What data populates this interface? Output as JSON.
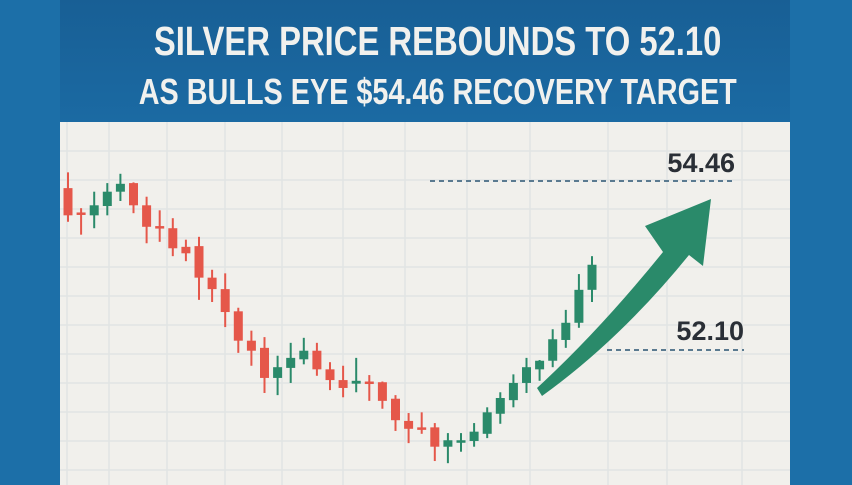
{
  "header": {
    "title_line1": "SILVER PRICE REBOUNDS TO 52.10",
    "title_line2": "AS BULLS EYE $54.46 RECOVERY TARGET"
  },
  "colors": {
    "background": "#1c6fa8",
    "panel": "#f1f0ec",
    "up": "#2a8a6a",
    "down": "#e5574a",
    "arrow": "#2a8a6a",
    "level_line": "#5a7a90"
  },
  "chart_data": {
    "type": "candlestick",
    "title": "SILVER PRICE REBOUNDS TO 52.10 AS BULLS EYE $54.46 RECOVERY TARGET",
    "xlabel": "",
    "ylabel": "",
    "grid": true,
    "ylim": [
      49.9,
      55.2
    ],
    "levels": [
      {
        "label": "54.46",
        "value": 54.46
      },
      {
        "label": "52.10",
        "value": 52.1
      }
    ],
    "annotation": "upward arrow toward 54.46 target",
    "candles": [
      {
        "o": 54.36,
        "h": 54.58,
        "l": 53.89,
        "c": 53.98
      },
      {
        "o": 54.02,
        "h": 54.08,
        "l": 53.71,
        "c": 54.0
      },
      {
        "o": 53.98,
        "h": 54.31,
        "l": 53.8,
        "c": 54.12
      },
      {
        "o": 54.11,
        "h": 54.43,
        "l": 53.98,
        "c": 54.31
      },
      {
        "o": 54.31,
        "h": 54.56,
        "l": 54.18,
        "c": 54.42
      },
      {
        "o": 54.43,
        "h": 54.44,
        "l": 54.01,
        "c": 54.12
      },
      {
        "o": 54.12,
        "h": 54.24,
        "l": 53.59,
        "c": 53.82
      },
      {
        "o": 53.83,
        "h": 54.05,
        "l": 53.61,
        "c": 53.81
      },
      {
        "o": 53.8,
        "h": 53.94,
        "l": 53.41,
        "c": 53.52
      },
      {
        "o": 53.54,
        "h": 53.64,
        "l": 53.34,
        "c": 53.45
      },
      {
        "o": 53.55,
        "h": 53.68,
        "l": 52.8,
        "c": 53.11
      },
      {
        "o": 53.11,
        "h": 53.22,
        "l": 52.77,
        "c": 52.95
      },
      {
        "o": 52.95,
        "h": 53.17,
        "l": 52.42,
        "c": 52.63
      },
      {
        "o": 52.64,
        "h": 52.69,
        "l": 52.06,
        "c": 52.23
      },
      {
        "o": 52.23,
        "h": 52.37,
        "l": 51.88,
        "c": 52.09
      },
      {
        "o": 52.13,
        "h": 52.28,
        "l": 51.5,
        "c": 51.71
      },
      {
        "o": 51.71,
        "h": 52.02,
        "l": 51.47,
        "c": 51.86
      },
      {
        "o": 51.85,
        "h": 52.2,
        "l": 51.64,
        "c": 51.99
      },
      {
        "o": 51.97,
        "h": 52.27,
        "l": 51.9,
        "c": 52.09
      },
      {
        "o": 52.09,
        "h": 52.2,
        "l": 51.74,
        "c": 51.83
      },
      {
        "o": 51.83,
        "h": 51.93,
        "l": 51.54,
        "c": 51.68
      },
      {
        "o": 51.68,
        "h": 51.88,
        "l": 51.44,
        "c": 51.57
      },
      {
        "o": 51.63,
        "h": 51.99,
        "l": 51.51,
        "c": 51.67
      },
      {
        "o": 51.66,
        "h": 51.75,
        "l": 51.39,
        "c": 51.64
      },
      {
        "o": 51.65,
        "h": 51.66,
        "l": 51.28,
        "c": 51.39
      },
      {
        "o": 51.42,
        "h": 51.47,
        "l": 50.97,
        "c": 51.12
      },
      {
        "o": 51.11,
        "h": 51.22,
        "l": 50.8,
        "c": 51.0
      },
      {
        "o": 51.02,
        "h": 51.23,
        "l": 50.93,
        "c": 51.0
      },
      {
        "o": 51.02,
        "h": 51.08,
        "l": 50.55,
        "c": 50.75
      },
      {
        "o": 50.75,
        "h": 50.94,
        "l": 50.52,
        "c": 50.84
      },
      {
        "o": 50.82,
        "h": 50.94,
        "l": 50.68,
        "c": 50.84
      },
      {
        "o": 50.83,
        "h": 51.08,
        "l": 50.75,
        "c": 50.96
      },
      {
        "o": 50.93,
        "h": 51.3,
        "l": 50.87,
        "c": 51.23
      },
      {
        "o": 51.21,
        "h": 51.51,
        "l": 51.07,
        "c": 51.43
      },
      {
        "o": 51.4,
        "h": 51.76,
        "l": 51.3,
        "c": 51.64
      },
      {
        "o": 51.64,
        "h": 51.99,
        "l": 51.5,
        "c": 51.86
      },
      {
        "o": 51.83,
        "h": 51.96,
        "l": 51.67,
        "c": 51.95
      },
      {
        "o": 51.95,
        "h": 52.39,
        "l": 51.86,
        "c": 52.25
      },
      {
        "o": 52.24,
        "h": 52.66,
        "l": 52.13,
        "c": 52.48
      },
      {
        "o": 52.48,
        "h": 53.16,
        "l": 52.41,
        "c": 52.94
      },
      {
        "o": 52.94,
        "h": 53.41,
        "l": 52.77,
        "c": 53.29
      }
    ]
  }
}
